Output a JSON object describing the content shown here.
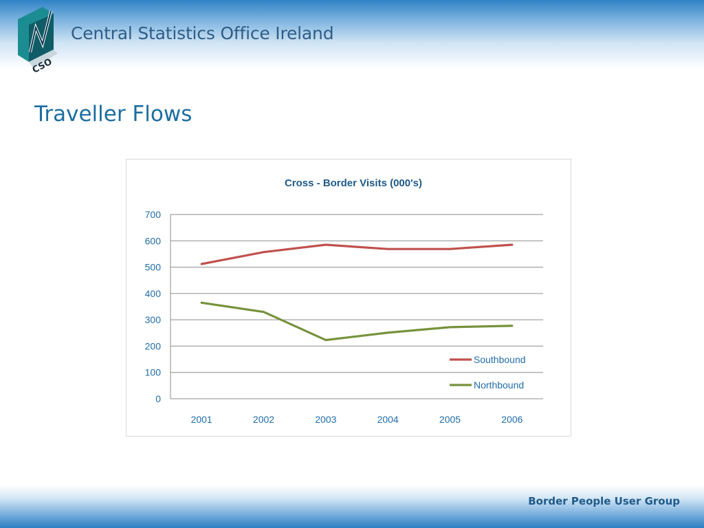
{
  "header": {
    "logo_text": "CSO",
    "organization": "Central Statistics Office Ireland"
  },
  "slide": {
    "title": "Traveller Flows"
  },
  "footer": {
    "text": "Border People User Group"
  },
  "colors": {
    "southbound": "#c0504d",
    "northbound": "#76923c",
    "title_blue": "#1c6ea0",
    "axis_text": "#1f6da8"
  },
  "chart_data": {
    "type": "line",
    "title": "Cross - Border Visits (000's)",
    "xlabel": "",
    "ylabel": "",
    "categories": [
      "2001",
      "2002",
      "2003",
      "2004",
      "2005",
      "2006"
    ],
    "ylim": [
      0,
      700
    ],
    "yticks": [
      0,
      100,
      200,
      300,
      400,
      500,
      600,
      700
    ],
    "grid": true,
    "legend_position": "bottom-right",
    "series": [
      {
        "name": "Southbound",
        "color": "#c0504d",
        "values": [
          512,
          557,
          585,
          569,
          569,
          585
        ]
      },
      {
        "name": "Northbound",
        "color": "#76923c",
        "values": [
          365,
          330,
          223,
          251,
          272,
          277
        ]
      }
    ]
  }
}
